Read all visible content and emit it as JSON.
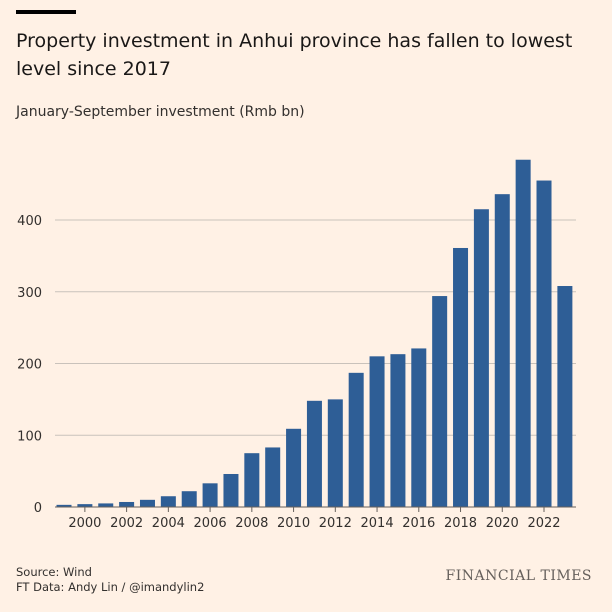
{
  "title": "Property investment in Anhui province has fallen to lowest level since 2017",
  "footer": {
    "source": "Source: Wind",
    "credit": "FT Data: Andy Lin / @imandylin2",
    "logo": "FINANCIAL TIMES"
  },
  "chart_data": {
    "type": "bar",
    "title": "Property investment in Anhui province has fallen to lowest level since 2017",
    "subtitle": "January-September investment (Rmb bn)",
    "categories": [
      "1999",
      "2000",
      "2001",
      "2002",
      "2003",
      "2004",
      "2005",
      "2006",
      "2007",
      "2008",
      "2009",
      "2010",
      "2011",
      "2012",
      "2013",
      "2014",
      "2015",
      "2016",
      "2017",
      "2018",
      "2019",
      "2020",
      "2021",
      "2022",
      "2023"
    ],
    "values": [
      3,
      4,
      5,
      7,
      10,
      15,
      22,
      33,
      46,
      75,
      83,
      109,
      148,
      150,
      187,
      210,
      213,
      221,
      294,
      361,
      415,
      436,
      484,
      455,
      308
    ],
    "x_tick_labels": [
      "2000",
      "2002",
      "2004",
      "2006",
      "2008",
      "2010",
      "2012",
      "2014",
      "2016",
      "2018",
      "2020",
      "2022"
    ],
    "y_ticks": [
      0,
      100,
      200,
      300,
      400
    ],
    "ylim": [
      0,
      500
    ],
    "grid": true,
    "bar_color": "#2e5e96",
    "gridline_color": "#c9c2bb"
  }
}
